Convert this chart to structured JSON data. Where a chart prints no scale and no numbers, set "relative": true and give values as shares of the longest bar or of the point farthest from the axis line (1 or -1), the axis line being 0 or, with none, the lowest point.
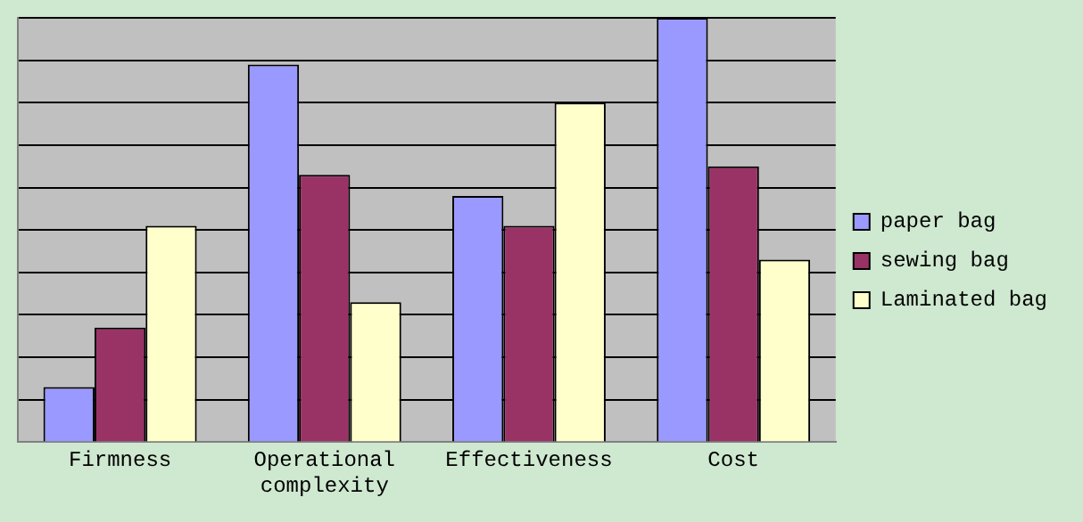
{
  "chart_data": {
    "type": "bar",
    "relative": true,
    "categories": [
      "Firmness",
      "Operational complexity",
      "Effectiveness",
      "Cost"
    ],
    "series": [
      {
        "name": "paper bag",
        "color": "#9999ff",
        "values": [
          0.13,
          0.89,
          0.58,
          1
        ]
      },
      {
        "name": "sewing bag",
        "color": "#993366",
        "values": [
          0.27,
          0.63,
          0.51,
          0.65
        ]
      },
      {
        "name": "Laminated bag",
        "color": "#ffffcc",
        "values": [
          0.51,
          0.33,
          0.8,
          0.43
        ]
      }
    ],
    "grid": "y",
    "legend": "right"
  }
}
